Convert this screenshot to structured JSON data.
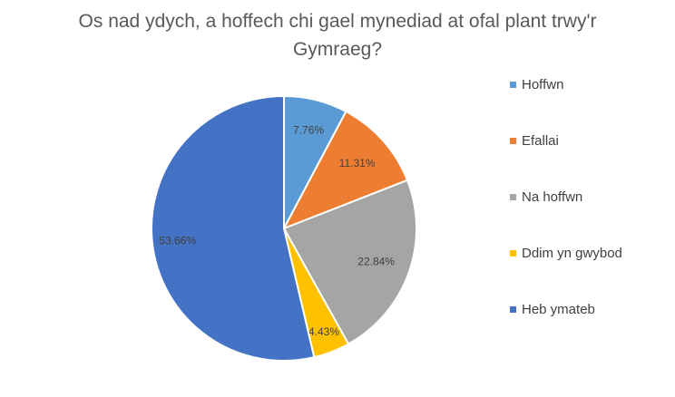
{
  "chart_data": {
    "type": "pie",
    "title": "Os nad ydych, a hoffech chi gael mynediad at ofal plant trwy'r Gymraeg?",
    "categories": [
      "Hoffwn",
      "Efallai",
      "Na hoffwn",
      "Ddim yn gwybod",
      "Heb ymateb"
    ],
    "values": [
      7.76,
      11.31,
      22.84,
      4.43,
      53.66
    ],
    "data_labels": [
      "7.76%",
      "11.31%",
      "22.84%",
      "4.43%",
      "53.66%"
    ],
    "colors": [
      "#5B9BD5",
      "#ED7D31",
      "#A5A5A5",
      "#FFC000",
      "#4472C4"
    ],
    "legend_position": "right"
  }
}
